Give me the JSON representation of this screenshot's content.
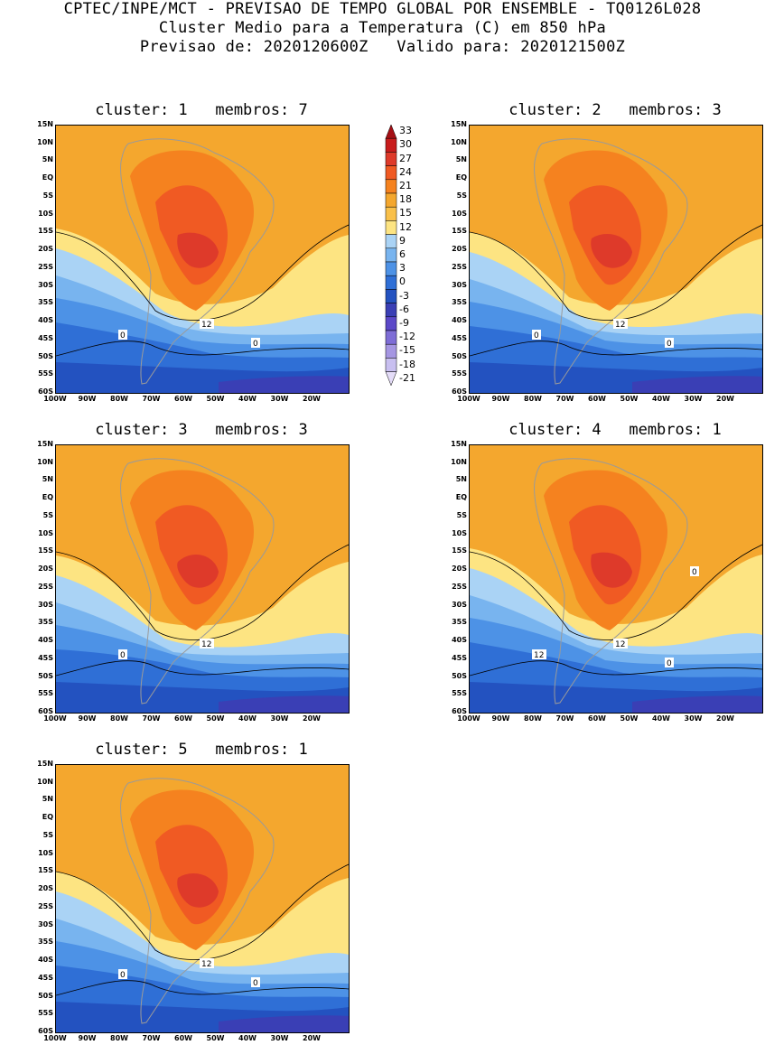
{
  "header": {
    "line1": "CPTEC/INPE/MCT - PREVISAO DE TEMPO GLOBAL POR ENSEMBLE - TQ0126L028",
    "line2": "Cluster Medio para a Temperatura (C) em 850 hPa",
    "line3": "Previsao de: 2020120600Z   Valido para: 2020121500Z"
  },
  "lat_labels": [
    "15N",
    "10N",
    "5N",
    "EQ",
    "5S",
    "10S",
    "15S",
    "20S",
    "25S",
    "30S",
    "35S",
    "40S",
    "45S",
    "50S",
    "55S",
    "60S"
  ],
  "lon_labels": [
    "100W",
    "90W",
    "80W",
    "70W",
    "60W",
    "50W",
    "40W",
    "30W",
    "20W"
  ],
  "panels": [
    {
      "title": "cluster: 1   membros: 7",
      "contour_labels": [
        "12",
        "0",
        "0"
      ]
    },
    {
      "title": "cluster: 2   membros: 3",
      "contour_labels": [
        "12",
        "0",
        "0"
      ]
    },
    {
      "title": "cluster: 3   membros: 3",
      "contour_labels": [
        "12",
        "0"
      ]
    },
    {
      "title": "cluster: 4   membros: 1",
      "contour_labels": [
        "12",
        "12",
        "0",
        "0"
      ]
    },
    {
      "title": "cluster: 5   membros: 1",
      "contour_labels": [
        "12",
        "0",
        "0"
      ]
    }
  ],
  "colorbar": {
    "levels": [
      "33",
      "30",
      "27",
      "24",
      "21",
      "18",
      "15",
      "12",
      "9",
      "6",
      "3",
      "0",
      "-3",
      "-6",
      "-9",
      "-12",
      "-15",
      "-18",
      "-21"
    ],
    "colors": [
      "#a50f15",
      "#c81c1c",
      "#de3a2a",
      "#f05a23",
      "#f5821f",
      "#f4a72e",
      "#f9c04a",
      "#fde482",
      "#aad3f5",
      "#78b4ef",
      "#4d92e6",
      "#2f6fd6",
      "#2352c0",
      "#3a3fb5",
      "#5b48c8",
      "#7e6dd6",
      "#a596e2",
      "#c8bff0",
      "#e4dcf8"
    ]
  },
  "colors": {
    "land_border": "#9a9a9a",
    "contour": "#000000"
  }
}
